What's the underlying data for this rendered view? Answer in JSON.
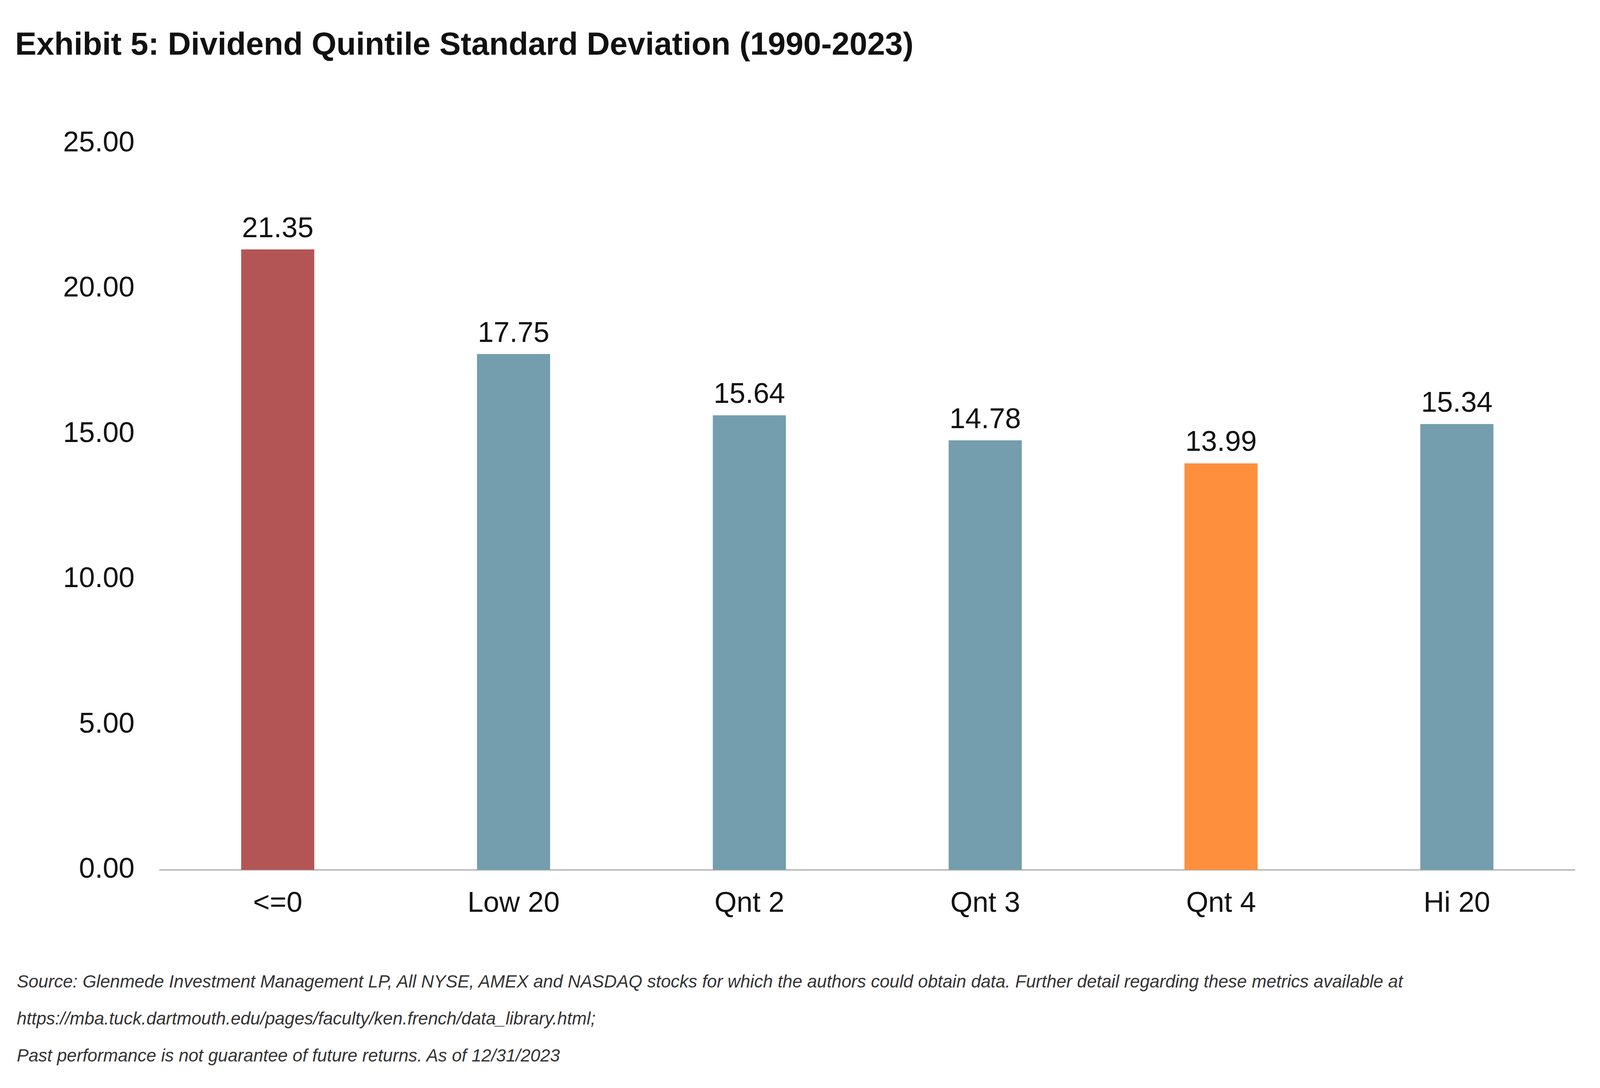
{
  "chart_data": {
    "type": "bar",
    "title": "Exhibit 5: Dividend Quintile Standard Deviation (1990-2023)",
    "categories": [
      "<=0",
      "Low 20",
      "Qnt 2",
      "Qnt 3",
      "Qnt 4",
      "Hi 20"
    ],
    "values": [
      21.35,
      17.75,
      15.64,
      14.78,
      13.99,
      15.34
    ],
    "colors": [
      "#b35555",
      "#749dae",
      "#749dae",
      "#749dae",
      "#fd8f3d",
      "#749dae"
    ],
    "ylim": [
      0,
      25
    ],
    "yticks": [
      {
        "value": 0,
        "label": "0.00"
      },
      {
        "value": 5,
        "label": "5.00"
      },
      {
        "value": 10,
        "label": "10.00"
      },
      {
        "value": 15,
        "label": "15.00"
      },
      {
        "value": 20,
        "label": "20.00"
      },
      {
        "value": 25,
        "label": "25.00"
      }
    ],
    "grid": false,
    "data_labels": true,
    "annotations": [
      "Source: Glenmede Investment Management LP, All NYSE, AMEX and NASDAQ stocks for which the authors could obtain data.  Further detail regarding these metrics available at",
      "https://mba.tuck.dartmouth.edu/pages/faculty/ken.french/data_library.html;",
      "Past performance is not guarantee of future returns. As of 12/31/2023"
    ]
  }
}
